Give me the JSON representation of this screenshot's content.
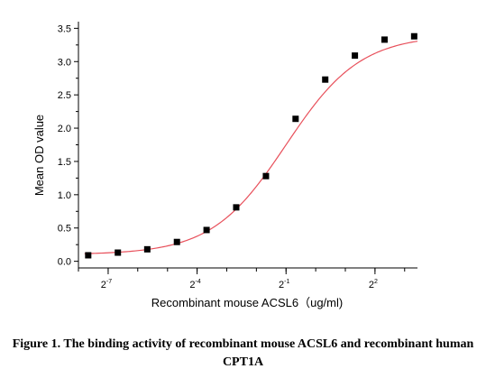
{
  "chart_data": {
    "type": "scatter",
    "xlabel": "Recombinant mouse ACSL6（ug/ml)",
    "ylabel": "Mean OD value",
    "x_scale": "log2",
    "xlim": [
      0.0039,
      10.8
    ],
    "ylim": [
      -0.1,
      3.6
    ],
    "y_ticks": [
      "0.0",
      "0.5",
      "1.0",
      "1.5",
      "2.0",
      "2.5",
      "3.0",
      "3.5"
    ],
    "x_ticks": [
      {
        "base": "2",
        "exp": "-7",
        "value": 0.0078125
      },
      {
        "base": "2",
        "exp": "-4",
        "value": 0.0625
      },
      {
        "base": "2",
        "exp": "-1",
        "value": 0.5
      },
      {
        "base": "2",
        "exp": "2",
        "value": 4
      }
    ],
    "x_minor_ticks": [
      0.0039,
      0.0078125,
      0.0156,
      0.0313,
      0.0625,
      0.125,
      0.25,
      0.5,
      1,
      2,
      4,
      8
    ],
    "series": [
      {
        "marker": "square",
        "color": "#000000",
        "x": [
          0.0049,
          0.0098,
          0.0195,
          0.039,
          0.078,
          0.156,
          0.3125,
          0.625,
          1.25,
          2.5,
          5,
          10
        ],
        "y": [
          0.09,
          0.13,
          0.18,
          0.29,
          0.47,
          0.81,
          1.28,
          2.14,
          2.73,
          3.09,
          3.33,
          3.38
        ]
      }
    ],
    "fit_curve": {
      "model": "4PL",
      "color": "#e8505b",
      "bottom": 0.1,
      "top": 3.4,
      "ec50": 0.5,
      "hill": 1.15
    }
  },
  "caption": {
    "line1": "Figure 1. The binding activity of recombinant mouse ACSL6 and recombinant human",
    "line2": "CPT1A"
  }
}
